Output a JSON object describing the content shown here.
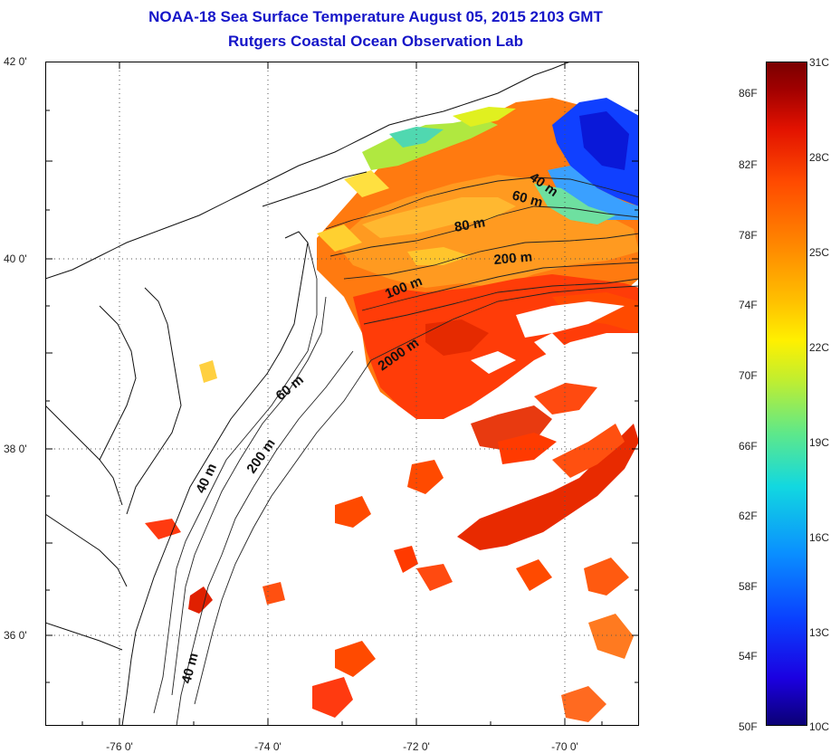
{
  "title": {
    "line1": "NOAA-18 Sea Surface Temperature August 05, 2015 2103 GMT",
    "line2": "Rutgers Coastal Ocean Observation Lab"
  },
  "axes": {
    "lat_labels": [
      "42 0'",
      "40 0'",
      "38 0'",
      "36 0'"
    ],
    "lon_labels": [
      "-76 0'",
      "-74 0'",
      "-72 0'",
      "-70 0'"
    ]
  },
  "contours": {
    "labels": [
      "40 m",
      "60 m",
      "80 m",
      "200 m",
      "100 m",
      "2000 m",
      "60 m",
      "200 m",
      "40 m",
      "40 m"
    ]
  },
  "colorbar": {
    "fahrenheit": [
      "86F",
      "82F",
      "78F",
      "74F",
      "70F",
      "66F",
      "62F",
      "58F",
      "54F",
      "50F"
    ],
    "celsius": [
      "31C",
      "28C",
      "25C",
      "22C",
      "19C",
      "16C",
      "13C",
      "10C"
    ],
    "colors": [
      "#0b0075",
      "#1b00e0",
      "#0a90ff",
      "#12d8e0",
      "#c0ee30",
      "#fff000",
      "#ff8a00",
      "#ff4a00",
      "#e21200",
      "#7a0000"
    ]
  }
}
